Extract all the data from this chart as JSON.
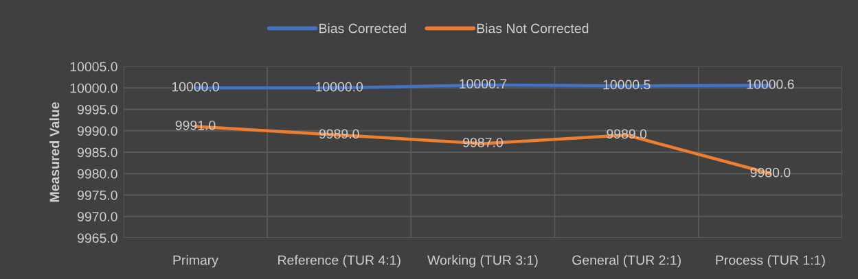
{
  "chart_data": {
    "type": "line",
    "ylabel": "Measured Value",
    "categories": [
      "Primary",
      "Reference (TUR 4:1)",
      "Working (TUR 3:1)",
      "General (TUR 2:1)",
      "Process (TUR 1:1)"
    ],
    "series": [
      {
        "name": "Bias Corrected",
        "color": "#4472c4",
        "values": [
          10000.0,
          10000.0,
          10000.7,
          10000.5,
          10000.6
        ],
        "value_labels": [
          "10000.0",
          "10000.0",
          "10000.7",
          "10000.5",
          "10000.6"
        ]
      },
      {
        "name": "Bias Not Corrected",
        "color": "#ed7d31",
        "values": [
          9991.0,
          9989.0,
          9987.0,
          9989.0,
          9980.0
        ],
        "value_labels": [
          "9991.0",
          "9989.0",
          "9987.0",
          "9989.0",
          "9980.0"
        ]
      }
    ],
    "ylim": [
      9965,
      10005
    ],
    "yticks": [
      {
        "value": 9965,
        "label": "9965.0"
      },
      {
        "value": 9970,
        "label": "9970.0"
      },
      {
        "value": 9975,
        "label": "9975.0"
      },
      {
        "value": 9980,
        "label": "9980.0"
      },
      {
        "value": 9985,
        "label": "9985.0"
      },
      {
        "value": 9990,
        "label": "9990.0"
      },
      {
        "value": 9995,
        "label": "9995.0"
      },
      {
        "value": 10000,
        "label": "10000.0"
      },
      {
        "value": 10005,
        "label": "10005.0"
      }
    ],
    "grid": true,
    "legend": "top",
    "marker": "none",
    "line_style": "solid"
  }
}
